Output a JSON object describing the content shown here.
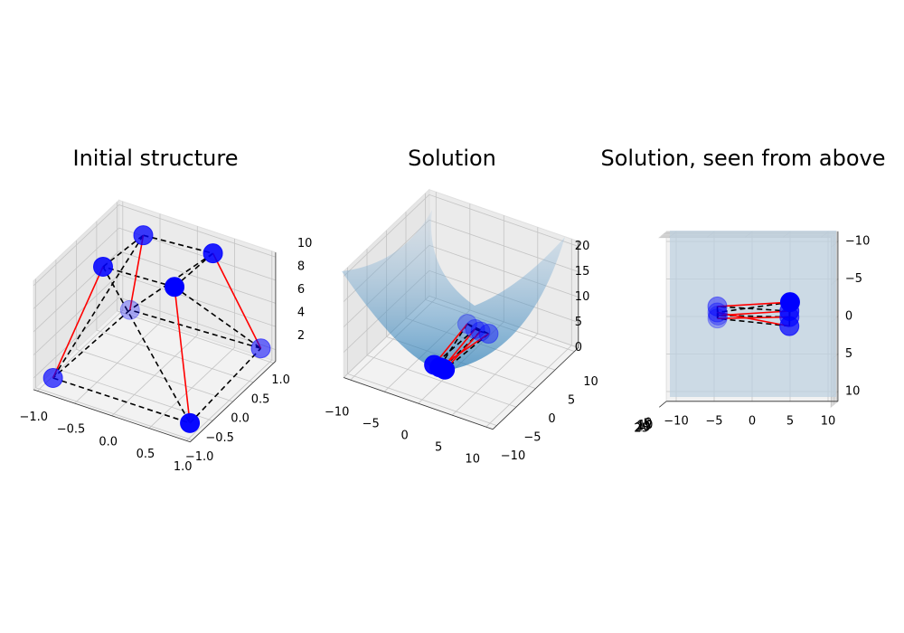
{
  "chart_data": [
    {
      "type": "scatter3d",
      "title": "Initial structure",
      "x": [
        -0.98,
        0.85,
        0.89,
        -0.81,
        -0.68,
        -0.49,
        0.39,
        0.24
      ],
      "y": [
        -0.7,
        -0.69,
        0.98,
        0.88,
        -0.02,
        0.62,
        0.72,
        0.05
      ],
      "z": [
        1,
        1,
        2,
        2,
        9,
        10,
        10,
        9
      ],
      "bars": [
        [
          0,
          4
        ],
        [
          1,
          7
        ],
        [
          2,
          6
        ],
        [
          3,
          5
        ]
      ],
      "cables": [
        [
          4,
          5
        ],
        [
          5,
          6
        ],
        [
          6,
          7
        ],
        [
          7,
          4
        ],
        [
          0,
          1
        ],
        [
          1,
          2
        ],
        [
          2,
          3
        ],
        [
          3,
          0
        ],
        [
          4,
          1
        ],
        [
          5,
          0
        ],
        [
          6,
          3
        ],
        [
          7,
          2
        ]
      ],
      "point_color": "#0000ff",
      "bar_color": "#ff0000",
      "cable_color": "#000000",
      "xlim": [
        -1.05,
        1.05
      ],
      "ylim": [
        -1.05,
        1.05
      ],
      "zlim": [
        1,
        10.4
      ],
      "xticks": [
        {
          "value": -1,
          "label": "−1.0"
        },
        {
          "value": -0.5,
          "label": "−0.5"
        },
        {
          "value": 0,
          "label": "0.0"
        },
        0.5,
        {
          "value": 1,
          "label": "1.0"
        }
      ],
      "yticks": [
        {
          "value": -1,
          "label": "−1.0"
        },
        {
          "value": -0.5,
          "label": "−0.5"
        },
        {
          "value": 0,
          "label": "0.0"
        },
        0.5,
        {
          "value": 1,
          "label": "1.0"
        }
      ],
      "zticks": [
        2,
        4,
        6,
        8,
        10
      ],
      "grid": true
    },
    {
      "type": "scatter3d",
      "title": "Solution",
      "x": [
        -1.4,
        -0.6,
        0.2,
        -0.2,
        -2.0,
        -0.8,
        0.0,
        1.2
      ],
      "y": [
        -4.5,
        -4.5,
        -4.5,
        -4.4,
        5.1,
        5.0,
        5.0,
        5.0
      ],
      "z": [
        2.2,
        2.1,
        2.0,
        2.0,
        3.0,
        2.6,
        2.5,
        2.6
      ],
      "bars": [
        [
          0,
          4
        ],
        [
          1,
          7
        ],
        [
          2,
          6
        ],
        [
          3,
          5
        ]
      ],
      "cables": [
        [
          4,
          5
        ],
        [
          5,
          6
        ],
        [
          6,
          7
        ],
        [
          7,
          4
        ],
        [
          0,
          1
        ],
        [
          1,
          2
        ],
        [
          2,
          3
        ],
        [
          3,
          0
        ],
        [
          4,
          1
        ],
        [
          5,
          0
        ],
        [
          6,
          3
        ],
        [
          7,
          2
        ]
      ],
      "point_color": "#0000ff",
      "bar_color": "#ff0000",
      "cable_color": "#000000",
      "xlim": [
        -11,
        11
      ],
      "ylim": [
        -11,
        11
      ],
      "zlim": [
        0,
        21
      ],
      "xticks": [
        {
          "value": -10,
          "label": "−10"
        },
        {
          "value": -5,
          "label": "−5"
        },
        0,
        5,
        10
      ],
      "yticks": [
        {
          "value": -10,
          "label": "−10"
        },
        {
          "value": -5,
          "label": "−5"
        },
        0,
        5,
        10
      ],
      "zticks": [
        0,
        5,
        10,
        15,
        20
      ],
      "grid": true
    },
    {
      "type": "scatter3d",
      "title": "Solution, seen from above",
      "x": [
        -1.4,
        -0.6,
        0.2,
        -0.2,
        -2.0,
        -0.8,
        0.0,
        1.2
      ],
      "y": [
        -4.5,
        -4.5,
        -4.5,
        -4.4,
        5.1,
        5.0,
        5.0,
        5.0
      ],
      "z": [
        2.2,
        2.1,
        2.0,
        2.0,
        3.0,
        2.6,
        2.5,
        2.6
      ],
      "bars": [
        [
          0,
          4
        ],
        [
          1,
          7
        ],
        [
          2,
          6
        ],
        [
          3,
          5
        ]
      ],
      "cables": [
        [
          4,
          5
        ],
        [
          5,
          6
        ],
        [
          6,
          7
        ],
        [
          7,
          4
        ],
        [
          0,
          1
        ],
        [
          1,
          2
        ],
        [
          2,
          3
        ],
        [
          3,
          0
        ],
        [
          4,
          1
        ],
        [
          5,
          0
        ],
        [
          6,
          3
        ],
        [
          7,
          2
        ]
      ],
      "point_color": "#0000ff",
      "bar_color": "#ff0000",
      "cable_color": "#000000",
      "xlim": [
        -11.3,
        11.3
      ],
      "ylim": [
        -11.3,
        11.3
      ],
      "zlim": [
        0,
        26
      ],
      "xticks": [
        {
          "value": -10,
          "label": "−10"
        },
        {
          "value": -5,
          "label": "−5"
        },
        0,
        5,
        10
      ],
      "yticks": [
        {
          "value": -10,
          "label": "−10"
        },
        {
          "value": -5,
          "label": "−5"
        },
        0,
        5,
        10
      ],
      "zticks": [
        0,
        5,
        10,
        15,
        20,
        25
      ],
      "grid": true
    }
  ]
}
